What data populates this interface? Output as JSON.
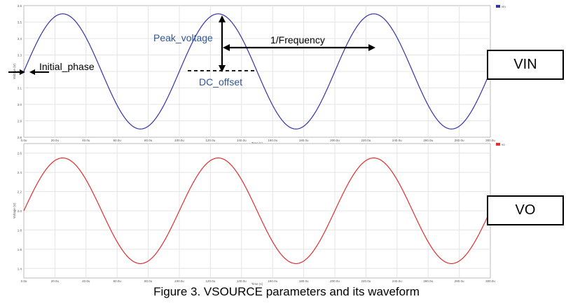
{
  "chart_data": [
    {
      "type": "line",
      "xlabel": "Time (s)",
      "ylabel": "Voltage (V)",
      "xlim": [
        0,
        300
      ],
      "ylim": [
        2.8,
        3.6
      ],
      "y_ticks": [
        "3.6",
        "3.5",
        "3.4",
        "3.3",
        "3.2",
        "3.1",
        "3.0",
        "2.9",
        "2.8"
      ],
      "x_ticks": [
        "0.0u",
        "20.0u",
        "40.0u",
        "60.0u",
        "80.0u",
        "100.0u",
        "120.0u",
        "140.0u",
        "160.0u",
        "180.0u",
        "200.0u",
        "220.0u",
        "240.0u",
        "260.0u",
        "280.0u",
        "300.0u"
      ],
      "grid": true,
      "legend": "top-right",
      "series": [
        {
          "name": "vin",
          "color": "#3333aa",
          "dc_offset": 3.2,
          "amplitude": 0.35,
          "period": 100,
          "peak_at": 25
        }
      ]
    },
    {
      "type": "line",
      "xlabel": "Time (s)",
      "ylabel": "Voltage (V)",
      "xlim": [
        0,
        300
      ],
      "ylim": [
        1.3,
        2.7
      ],
      "y_ticks": [
        "2.6",
        "2.4",
        "2.2",
        "2.0",
        "1.8",
        "1.6",
        "1.4"
      ],
      "x_ticks": [
        "0.0u",
        "20.0u",
        "40.0u",
        "60.0u",
        "80.0u",
        "100.0u",
        "120.0u",
        "140.0u",
        "160.0u",
        "180.0u",
        "200.0u",
        "220.0u",
        "240.0u",
        "260.0u",
        "280.0u",
        "300.0u"
      ],
      "grid": true,
      "legend": "top-right",
      "series": [
        {
          "name": "vo",
          "color": "#e03030",
          "dc_offset": 2.0,
          "amplitude": 0.55,
          "period": 100,
          "peak_at": 25
        }
      ]
    }
  ],
  "annotations": {
    "peak_voltage": "Peak_voltage",
    "frequency": "1/Frequency",
    "initial_phase": "Initial_phase",
    "dc_offset": "DC_offset"
  },
  "labels": {
    "vin": "VIN",
    "vo": "VO"
  },
  "caption": "Figure 3. VSOURCE parameters and its waveform",
  "colors": {
    "annotation_blue": "#2f5597",
    "grid": "#e4e4e4",
    "frame": "#bbbbbb"
  }
}
